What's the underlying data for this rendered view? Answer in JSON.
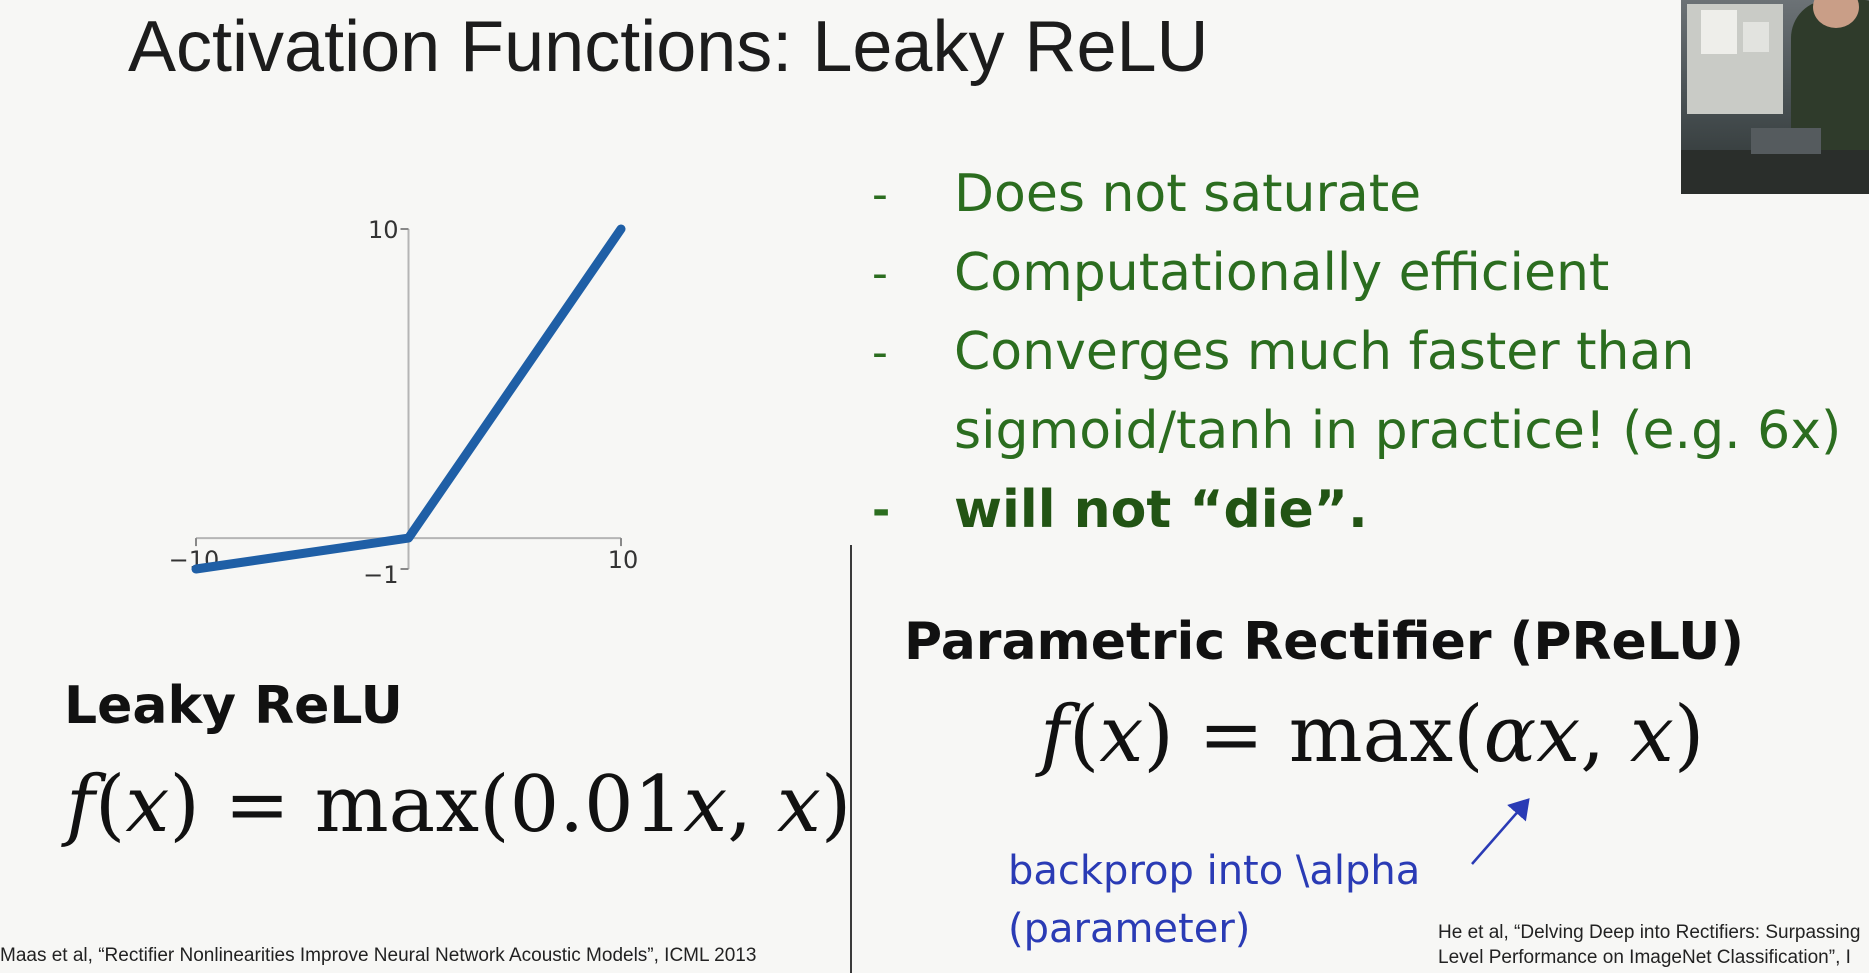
{
  "slide": {
    "title": "Activation Functions: Leaky ReLU",
    "bullets": [
      "Does not saturate",
      "Computationally efficient",
      "Converges much faster than",
      "sigmoid/tanh in practice! (e.g. 6x)",
      "will not “die”."
    ],
    "bullet_dash": "-",
    "left_label": "Leaky ReLU",
    "left_formula": {
      "f": "f",
      "open": "(",
      "x": "x",
      "close": ")",
      "eq": " = max(0.01",
      "x2": "x",
      "sep": ", ",
      "x3": "x",
      "end": ")"
    },
    "right_label": "Parametric Rectifier (PReLU)",
    "right_formula": {
      "f": "f",
      "open": "(",
      "x": "x",
      "close": ")",
      "eq": " = max(",
      "alpha": "αx",
      "sep": ", ",
      "x3": "x",
      "end": ")"
    },
    "note_line1": "backprop into \\alpha",
    "note_line2": "(parameter)",
    "citation_left": "Maas et al, “Rectifier Nonlinearities Improve Neural Network Acoustic Models”, ICML 2013",
    "citation_right_line1": "He et al, “Delving Deep into Rectifiers: Surpassing",
    "citation_right_line2": "Level Performance on ImageNet Classification”, I"
  },
  "chart_data": {
    "type": "line",
    "title": "",
    "xlabel": "",
    "ylabel": "",
    "xlim": [
      -10,
      10
    ],
    "ylim": [
      -1,
      10
    ],
    "x_ticks": [
      "−10",
      "10"
    ],
    "y_ticks": [
      "10",
      "−1"
    ],
    "series": [
      {
        "x": [
          -10,
          0,
          10
        ],
        "y": [
          -1,
          0,
          10
        ],
        "color": "#1f5fa6"
      }
    ],
    "grid": false
  }
}
